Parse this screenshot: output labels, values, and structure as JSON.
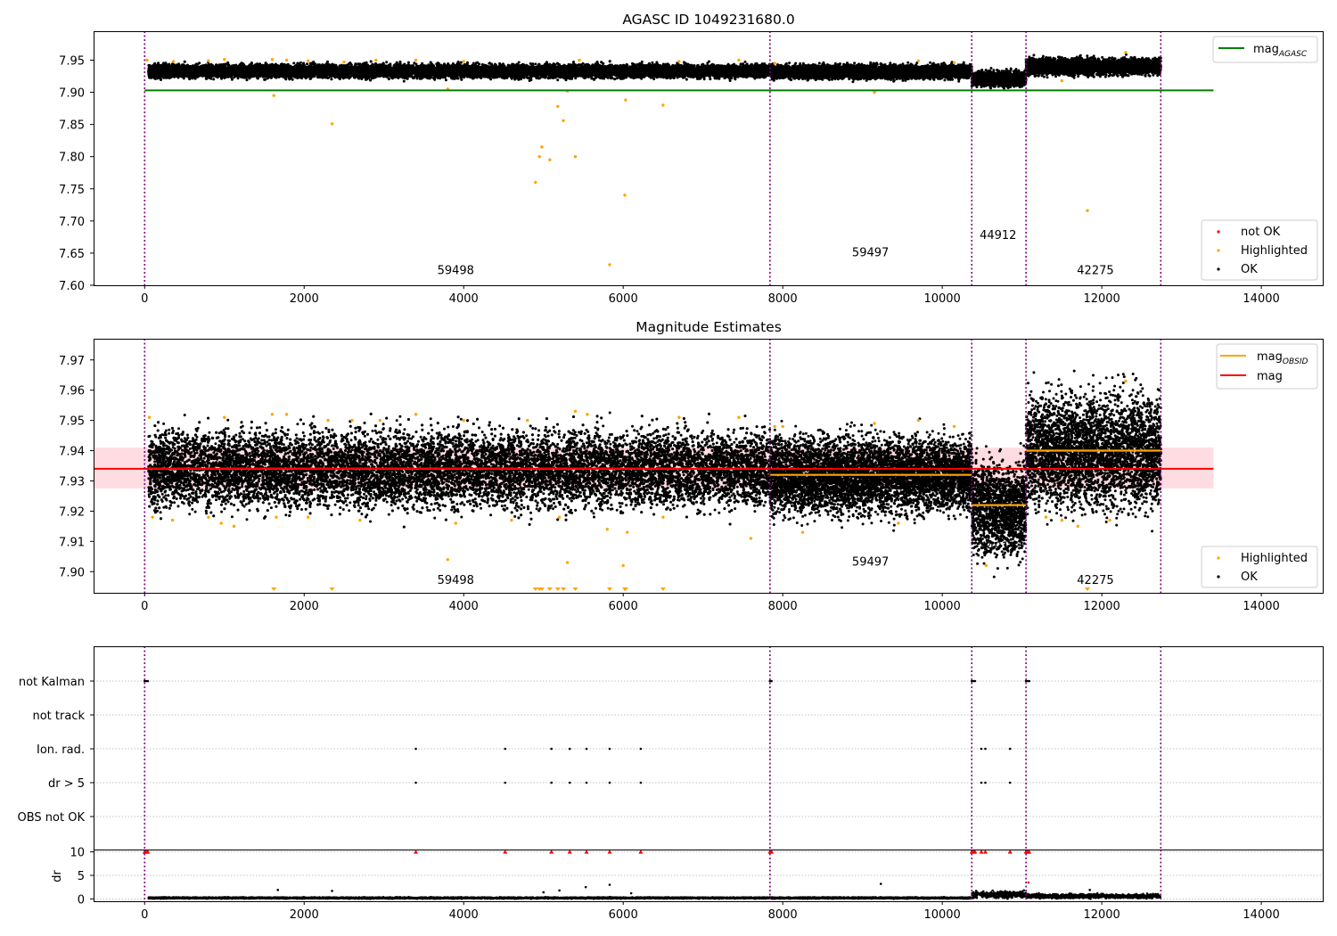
{
  "figure": {
    "title_top": "AGASC ID 1049231680.0",
    "title_mid": "Magnitude Estimates"
  },
  "colors": {
    "ok": "#000000",
    "highlighted": "#ffa500",
    "not_ok": "#ff0000",
    "agasc_line": "#008000",
    "mag_line": "#ff0000",
    "obsid_line": "#ffa500",
    "band": "#ffc0c8",
    "obsid_sep": "#800080",
    "dr_flag": "#ff0000"
  },
  "chart_data": [
    {
      "id": "agasc",
      "type": "scatter",
      "title": "AGASC ID 1049231680.0",
      "xlim": [
        -640,
        14770
      ],
      "ylim": [
        7.6,
        7.995
      ],
      "xticks": [
        0,
        2000,
        4000,
        6000,
        8000,
        10000,
        12000,
        14000
      ],
      "yticks": [
        7.6,
        7.65,
        7.7,
        7.75,
        7.8,
        7.85,
        7.9,
        7.95
      ],
      "obsid_boundaries": [
        0,
        7840,
        10370,
        11050,
        12740
      ],
      "obsid_labels": [
        {
          "text": "59498",
          "x": 3900,
          "y": 7.617
        },
        {
          "text": "59497",
          "x": 9100,
          "y": 7.645
        },
        {
          "text": "44912",
          "x": 10700,
          "y": 7.672
        },
        {
          "text": "42275",
          "x": 11920,
          "y": 7.617
        }
      ],
      "lines": [
        {
          "name": "mag_AGASC",
          "y": 7.903,
          "x": [
            0,
            13400
          ]
        }
      ],
      "ok_segments": [
        {
          "x": [
            50,
            7840
          ],
          "center": 7.933,
          "spread": 0.009
        },
        {
          "x": [
            7840,
            10370
          ],
          "center": 7.932,
          "spread": 0.009
        },
        {
          "x": [
            10370,
            11050
          ],
          "center": 7.921,
          "spread": 0.01
        },
        {
          "x": [
            11050,
            12740
          ],
          "center": 7.94,
          "spread": 0.011
        }
      ],
      "highlighted": [
        [
          30,
          7.95
        ],
        [
          360,
          7.948
        ],
        [
          800,
          7.949
        ],
        [
          1000,
          7.951
        ],
        [
          1600,
          7.951
        ],
        [
          1620,
          7.895
        ],
        [
          1780,
          7.95
        ],
        [
          2050,
          7.949
        ],
        [
          2350,
          7.851
        ],
        [
          2500,
          7.947
        ],
        [
          2900,
          7.95
        ],
        [
          3400,
          7.95
        ],
        [
          3800,
          7.905
        ],
        [
          4000,
          7.948
        ],
        [
          4900,
          7.76
        ],
        [
          4950,
          7.8
        ],
        [
          4980,
          7.815
        ],
        [
          5080,
          7.795
        ],
        [
          5180,
          7.878
        ],
        [
          5250,
          7.856
        ],
        [
          5300,
          7.902
        ],
        [
          5400,
          7.8
        ],
        [
          5450,
          7.95
        ],
        [
          5830,
          7.632
        ],
        [
          6020,
          7.74
        ],
        [
          6030,
          7.888
        ],
        [
          6500,
          7.88
        ],
        [
          6700,
          7.948
        ],
        [
          7450,
          7.95
        ],
        [
          7900,
          7.945
        ],
        [
          9150,
          7.9
        ],
        [
          9700,
          7.949
        ],
        [
          10150,
          7.946
        ],
        [
          11500,
          7.918
        ],
        [
          11820,
          7.716
        ],
        [
          12300,
          7.962
        ]
      ],
      "legend": {
        "agasc": "mag_AGASC",
        "not_ok": "not OK",
        "highlighted": "Highlighted",
        "ok": "OK"
      }
    },
    {
      "id": "estimates",
      "type": "scatter",
      "title": "Magnitude Estimates",
      "xlim": [
        -640,
        14770
      ],
      "ylim": [
        7.893,
        7.977
      ],
      "xticks": [
        0,
        2000,
        4000,
        6000,
        8000,
        10000,
        12000,
        14000
      ],
      "yticks": [
        7.9,
        7.91,
        7.92,
        7.93,
        7.94,
        7.95,
        7.96,
        7.97
      ],
      "obsid_boundaries": [
        0,
        7840,
        10370,
        11050,
        12740
      ],
      "obsid_labels": [
        {
          "text": "59498",
          "x": 3900,
          "y": 7.896
        },
        {
          "text": "59497",
          "x": 9100,
          "y": 7.902
        },
        {
          "text": "44912",
          "x": 10700,
          "y": 7.907
        },
        {
          "text": "42275",
          "x": 11920,
          "y": 7.896
        }
      ],
      "mag": 7.934,
      "mag_band": [
        7.9275,
        7.941
      ],
      "mag_obsid": [
        {
          "x": [
            0,
            7840
          ],
          "y": 7.934
        },
        {
          "x": [
            7840,
            10370
          ],
          "y": 7.932
        },
        {
          "x": [
            10370,
            11050
          ],
          "y": 7.922
        },
        {
          "x": [
            11050,
            12740
          ],
          "y": 7.94
        }
      ],
      "ok_segments": [
        {
          "x": [
            50,
            7840
          ],
          "center": 7.934,
          "spread": 0.011
        },
        {
          "x": [
            7840,
            10370
          ],
          "center": 7.932,
          "spread": 0.011
        },
        {
          "x": [
            10370,
            11050
          ],
          "center": 7.921,
          "spread": 0.013
        },
        {
          "x": [
            11050,
            12740
          ],
          "center": 7.94,
          "spread": 0.016
        }
      ],
      "highlighted": [
        [
          60,
          7.951
        ],
        [
          100,
          7.918
        ],
        [
          350,
          7.917
        ],
        [
          800,
          7.918
        ],
        [
          960,
          7.916
        ],
        [
          1000,
          7.951
        ],
        [
          1120,
          7.915
        ],
        [
          1600,
          7.952
        ],
        [
          1780,
          7.952
        ],
        [
          1650,
          7.918
        ],
        [
          2050,
          7.918
        ],
        [
          2300,
          7.95
        ],
        [
          2600,
          7.95
        ],
        [
          2700,
          7.917
        ],
        [
          2950,
          7.95
        ],
        [
          3400,
          7.952
        ],
        [
          3800,
          7.904
        ],
        [
          3900,
          7.916
        ],
        [
          4000,
          7.95
        ],
        [
          4600,
          7.917
        ],
        [
          4800,
          7.95
        ],
        [
          5200,
          7.918
        ],
        [
          5300,
          7.903
        ],
        [
          5400,
          7.953
        ],
        [
          5550,
          7.952
        ],
        [
          5800,
          7.914
        ],
        [
          6000,
          7.902
        ],
        [
          6050,
          7.913
        ],
        [
          6500,
          7.918
        ],
        [
          6700,
          7.951
        ],
        [
          7450,
          7.951
        ],
        [
          7600,
          7.911
        ],
        [
          7900,
          7.948
        ],
        [
          8000,
          7.948
        ],
        [
          8250,
          7.913
        ],
        [
          9150,
          7.949
        ],
        [
          9450,
          7.916
        ],
        [
          9700,
          7.95
        ],
        [
          10150,
          7.948
        ],
        [
          10550,
          7.902
        ],
        [
          11300,
          7.918
        ],
        [
          11500,
          7.917
        ],
        [
          11700,
          7.915
        ],
        [
          12100,
          7.917
        ],
        [
          12300,
          7.963
        ]
      ],
      "highlighted_offscale_x": [
        1620,
        2350,
        4900,
        4950,
        4980,
        5080,
        5180,
        5250,
        5400,
        5830,
        6020,
        6030,
        6500,
        11820
      ],
      "legend": {
        "obsid": "mag_OBSID",
        "mag": "mag",
        "highlighted": "Highlighted",
        "ok": "OK"
      }
    },
    {
      "id": "flags",
      "type": "scatter",
      "xlim": [
        -640,
        14770
      ],
      "xticks": [
        0,
        2000,
        4000,
        6000,
        8000,
        10000,
        12000,
        14000
      ],
      "categories": [
        "not Kalman",
        "not track",
        "Ion. rad.",
        "dr > 5",
        "OBS not OK"
      ],
      "obsid_boundaries": [
        0,
        7840,
        10370,
        11050,
        12740
      ],
      "points": {
        "not Kalman": [
          0,
          20,
          40,
          7840,
          7860,
          10370,
          10390,
          10410,
          11050,
          11070,
          11090
        ],
        "not track": [],
        "Ion. rad.": [
          3400,
          4520,
          5100,
          5330,
          5540,
          5830,
          6220,
          10490,
          10540,
          10850
        ],
        "dr > 5": [
          3400,
          4520,
          5100,
          5330,
          5540,
          5830,
          6220,
          10490,
          10540,
          10850
        ],
        "OBS not OK": []
      }
    },
    {
      "id": "dr",
      "type": "scatter",
      "ylabel": "dr",
      "xlim": [
        -640,
        14770
      ],
      "ylim": [
        -0.5,
        10.5
      ],
      "xticks": [
        0,
        2000,
        4000,
        6000,
        8000,
        10000,
        12000,
        14000
      ],
      "yticks": [
        0,
        5,
        10
      ],
      "obsid_boundaries": [
        0,
        7840,
        10370,
        11050,
        12740
      ],
      "baseline_segments": [
        {
          "x": [
            50,
            7840
          ],
          "level": 0.2
        },
        {
          "x": [
            7840,
            10370
          ],
          "level": 0.2
        },
        {
          "x": [
            10370,
            11050
          ],
          "level": 0.9
        },
        {
          "x": [
            11050,
            12740
          ],
          "level": 0.6
        }
      ],
      "outliers": [
        [
          1670,
          1.9
        ],
        [
          2350,
          1.7
        ],
        [
          5000,
          1.4
        ],
        [
          5200,
          1.8
        ],
        [
          5530,
          2.5
        ],
        [
          5830,
          3.0
        ],
        [
          6100,
          1.2
        ],
        [
          9230,
          3.2
        ],
        [
          11080,
          3.5
        ],
        [
          11850,
          1.9
        ]
      ],
      "clipped_x": [
        0,
        20,
        40,
        3400,
        4520,
        5100,
        5330,
        5540,
        5830,
        6220,
        7840,
        7860,
        10370,
        10390,
        10410,
        10490,
        10540,
        10850,
        11050,
        11070,
        11090
      ]
    }
  ]
}
